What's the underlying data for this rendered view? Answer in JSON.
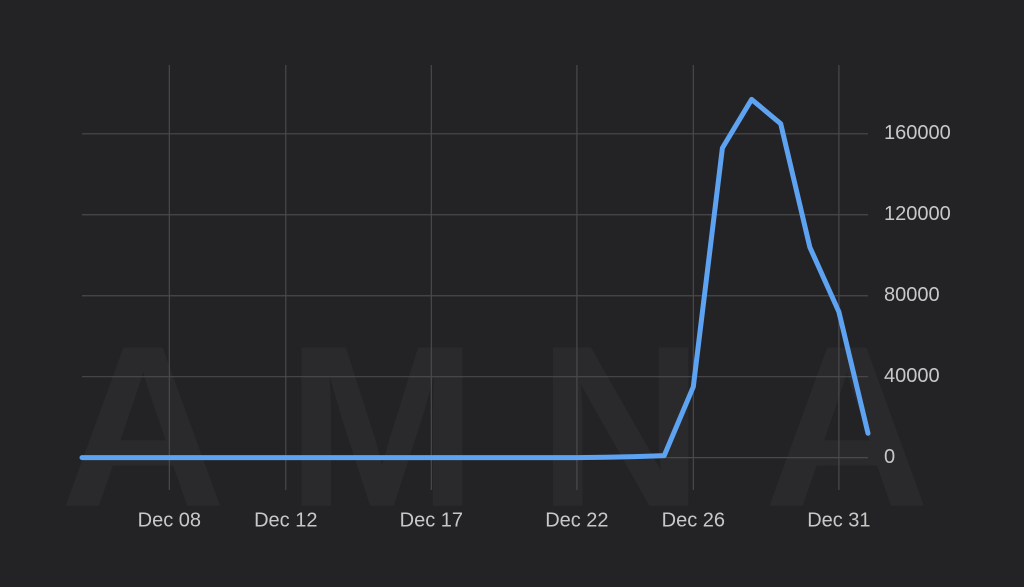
{
  "chart_data": {
    "type": "line",
    "categories": [
      null,
      null,
      null,
      "Dec 08",
      null,
      null,
      null,
      "Dec 12",
      null,
      null,
      null,
      null,
      "Dec 17",
      null,
      null,
      null,
      null,
      "Dec 22",
      null,
      null,
      null,
      "Dec 26",
      null,
      null,
      null,
      null,
      "Dec 31",
      null
    ],
    "series": [
      {
        "color": "#5ea3f2",
        "values": [
          0,
          0,
          0,
          0,
          0,
          0,
          0,
          0,
          0,
          0,
          0,
          0,
          0,
          0,
          0,
          0,
          0,
          0,
          200,
          500,
          1000,
          35000,
          153000,
          177000,
          165000,
          104000,
          72000,
          12000
        ]
      }
    ],
    "ylim": [
      -16000,
      194000
    ],
    "yticks": [
      0,
      40000,
      80000,
      120000,
      160000
    ],
    "grid": true,
    "y_axis_side": "right",
    "watermark": "AMNA"
  }
}
